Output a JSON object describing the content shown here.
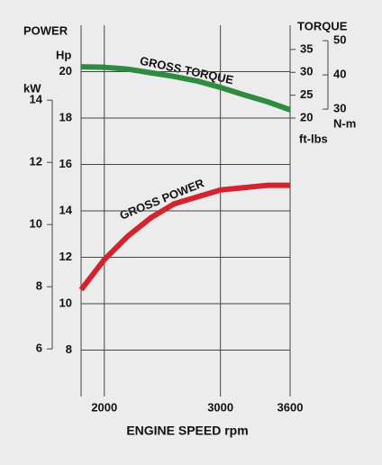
{
  "chart_data": {
    "type": "line",
    "y_label": "POWER",
    "y_unit": "Hp",
    "kw_unit": "kW",
    "y2_label": "TORQUE",
    "nm_unit": "N-m",
    "y2_unit": "ft-lbs",
    "x_label": "ENGINE SPEED rpm",
    "x": [
      1800,
      2000,
      2200,
      2400,
      2600,
      2800,
      3000,
      3200,
      3400,
      3600
    ],
    "xlim": [
      1800,
      3600
    ],
    "xticks": [
      2000,
      3000,
      3600
    ],
    "ylim": [
      6,
      22
    ],
    "yticks": [
      8,
      10,
      12,
      14,
      16,
      18,
      20
    ],
    "kwlim": [
      4.47,
      16.41
    ],
    "kwticks": [
      6,
      8,
      10,
      12,
      14
    ],
    "y2lim": [
      -40.9,
      40.3
    ],
    "y2ticks": [
      20,
      25,
      30,
      35
    ],
    "nmlim": [
      -53.9,
      54.5
    ],
    "nmticks": [
      30,
      40,
      50
    ],
    "grid": true,
    "series": [
      {
        "name": "GROSS POWER",
        "color": "#d2232e",
        "values": [
          10.6,
          11.9,
          12.9,
          13.7,
          14.3,
          14.6,
          14.9,
          15.0,
          15.1,
          15.1
        ]
      },
      {
        "name": "GROSS TORQUE",
        "color": "#2e8b3f",
        "axis": "y2",
        "values": [
          31.2,
          31.1,
          30.7,
          29.9,
          29.1,
          28.1,
          26.7,
          25.1,
          23.6,
          21.8
        ]
      }
    ]
  }
}
